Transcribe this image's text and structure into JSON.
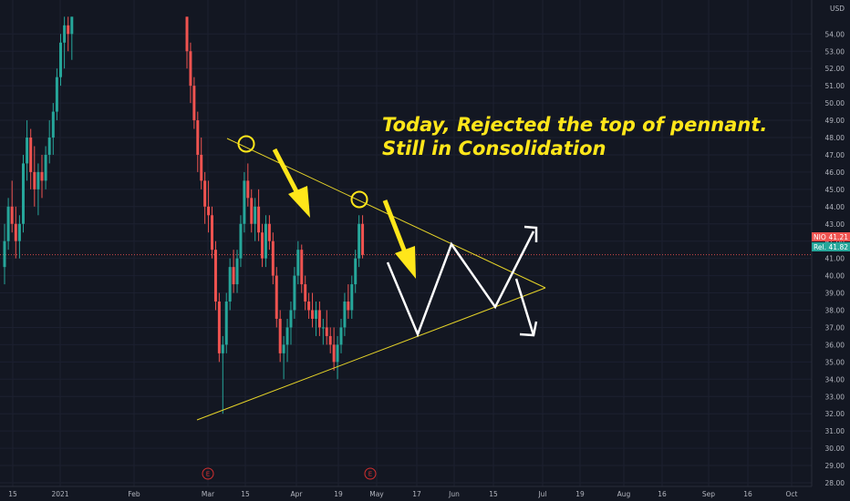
{
  "chart_data": {
    "type": "candlestick",
    "currency": "USD",
    "y_ticks": [
      28,
      29,
      30,
      31,
      32,
      33,
      34,
      35,
      36,
      37,
      38,
      39,
      40,
      41,
      42,
      43,
      44,
      45,
      46,
      47,
      48,
      49,
      50,
      51,
      52,
      53,
      54
    ],
    "y_tick_labels": [
      "28.00",
      "29.00",
      "30.00",
      "31.00",
      "32.00",
      "33.00",
      "34.00",
      "35.00",
      "36.00",
      "37.00",
      "38.00",
      "39.00",
      "40.00",
      "41.00",
      "42.00",
      "43.00",
      "44.00",
      "45.00",
      "46.00",
      "47.00",
      "48.00",
      "49.00",
      "50.00",
      "51.00",
      "52.00",
      "53.00",
      "54.00"
    ],
    "x_tick_labels": [
      "15",
      "2021",
      "Feb",
      "Mar",
      "15",
      "Apr",
      "19",
      "May",
      "17",
      "Jun",
      "15",
      "Jul",
      "19",
      "Aug",
      "16",
      "Sep",
      "16",
      "Oct"
    ],
    "last_price_labels": [
      {
        "symbol": "NIO",
        "value": "41.21",
        "color": "#ef5350"
      },
      {
        "symbol": "Rel.",
        "value": "41.82",
        "color": "#26a69a"
      }
    ],
    "earnings_markers": [
      "E",
      "E"
    ],
    "annotations": [
      "Today, Rejected the top of pennant.",
      "Still in Consolidation"
    ],
    "candle_colors": {
      "up": "#26a69a",
      "down": "#ef5350"
    },
    "candles": [
      [
        40.5,
        43.0,
        39.5,
        42.0
      ],
      [
        42.0,
        44.5,
        41.5,
        44.0
      ],
      [
        44.0,
        45.5,
        42.5,
        43.0
      ],
      [
        43.0,
        44.0,
        41.0,
        42.0
      ],
      [
        42.0,
        43.5,
        41.0,
        43.0
      ],
      [
        43.0,
        47.0,
        42.5,
        46.5
      ],
      [
        46.5,
        49.0,
        45.5,
        48.0
      ],
      [
        48.0,
        48.5,
        45.0,
        46.0
      ],
      [
        46.0,
        47.5,
        44.0,
        45.0
      ],
      [
        45.0,
        46.5,
        43.5,
        46.0
      ],
      [
        46.0,
        47.0,
        44.5,
        45.5
      ],
      [
        45.5,
        47.5,
        45.0,
        47.0
      ],
      [
        47.0,
        49.0,
        46.5,
        48.0
      ],
      [
        48.0,
        50.0,
        47.0,
        49.5
      ],
      [
        49.5,
        52.0,
        49.0,
        51.5
      ],
      [
        51.5,
        54.0,
        51.0,
        53.5
      ],
      [
        53.5,
        55.0,
        52.0,
        54.5
      ],
      [
        54.5,
        55.0,
        53.0,
        54.0
      ],
      [
        54.0,
        55.0,
        52.5,
        55.0
      ],
      [
        55.0,
        55.0,
        52.0,
        53.0
      ],
      [
        53.0,
        53.5,
        50.0,
        51.0
      ],
      [
        51.0,
        51.5,
        48.5,
        49.0
      ],
      [
        49.0,
        49.5,
        46.0,
        47.0
      ],
      [
        47.0,
        48.0,
        45.0,
        45.5
      ],
      [
        45.5,
        46.0,
        43.0,
        44.0
      ],
      [
        44.0,
        45.5,
        42.5,
        43.5
      ],
      [
        43.5,
        44.0,
        41.0,
        41.5
      ],
      [
        41.5,
        42.0,
        38.0,
        38.5
      ],
      [
        38.5,
        39.0,
        35.0,
        35.5
      ],
      [
        35.5,
        36.5,
        32.0,
        36.0
      ],
      [
        36.0,
        39.0,
        35.5,
        38.5
      ],
      [
        38.5,
        41.0,
        38.0,
        40.5
      ],
      [
        40.5,
        41.5,
        39.0,
        39.5
      ],
      [
        39.5,
        41.5,
        39.0,
        41.0
      ],
      [
        41.0,
        43.5,
        40.5,
        43.0
      ],
      [
        43.0,
        46.0,
        42.5,
        45.5
      ],
      [
        45.5,
        46.5,
        44.0,
        44.5
      ],
      [
        44.5,
        45.0,
        42.5,
        43.0
      ],
      [
        43.0,
        44.5,
        42.0,
        44.0
      ],
      [
        44.0,
        45.0,
        42.0,
        42.5
      ],
      [
        42.5,
        43.0,
        40.5,
        41.0
      ],
      [
        41.0,
        43.5,
        40.5,
        43.0
      ],
      [
        43.0,
        43.5,
        41.5,
        42.0
      ],
      [
        42.0,
        42.5,
        39.5,
        40.0
      ],
      [
        40.0,
        40.5,
        37.0,
        37.5
      ],
      [
        37.5,
        38.0,
        35.0,
        35.5
      ],
      [
        35.5,
        36.5,
        34.0,
        36.0
      ],
      [
        36.0,
        37.5,
        35.0,
        37.0
      ],
      [
        37.0,
        38.5,
        36.0,
        38.0
      ],
      [
        38.0,
        40.5,
        37.5,
        40.0
      ],
      [
        40.0,
        42.0,
        39.5,
        41.5
      ],
      [
        41.5,
        41.8,
        39.0,
        39.5
      ],
      [
        39.5,
        40.0,
        38.0,
        38.5
      ],
      [
        38.5,
        39.0,
        37.5,
        38.0
      ],
      [
        38.0,
        39.0,
        37.0,
        37.5
      ],
      [
        37.5,
        38.5,
        36.5,
        38.0
      ],
      [
        38.0,
        38.5,
        36.5,
        37.0
      ],
      [
        37.0,
        37.5,
        36.0,
        37.0
      ],
      [
        37.0,
        38.0,
        36.0,
        36.5
      ],
      [
        36.5,
        37.0,
        35.5,
        36.0
      ],
      [
        36.0,
        37.0,
        34.5,
        35.0
      ],
      [
        35.0,
        36.5,
        34.0,
        36.0
      ],
      [
        36.0,
        37.5,
        35.5,
        37.0
      ],
      [
        37.0,
        39.0,
        36.5,
        38.5
      ],
      [
        38.5,
        39.5,
        37.5,
        38.0
      ],
      [
        38.0,
        40.0,
        37.5,
        39.5
      ],
      [
        39.5,
        41.5,
        39.0,
        41.0
      ],
      [
        41.0,
        43.5,
        40.5,
        43.0
      ],
      [
        43.0,
        43.5,
        41.0,
        41.21
      ]
    ]
  },
  "chart_text": {
    "currency": "USD",
    "annotation_line1": "Today, Rejected the top of pennant.",
    "annotation_line2": "Still in Consolidation",
    "earn1": "E",
    "earn2": "E",
    "sym1": "NIO",
    "val1": "41.21",
    "sym2": "Rel.",
    "val2": "41.82"
  }
}
